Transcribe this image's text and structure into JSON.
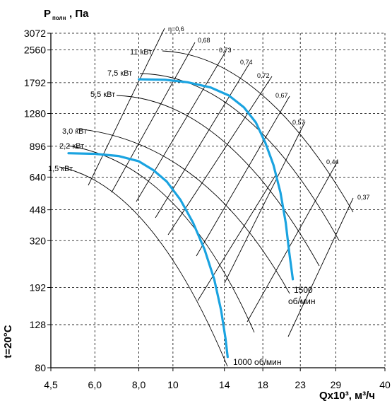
{
  "chart_data": {
    "type": "line",
    "ylabel_main": "P",
    "ylabel_sub": "полн",
    "ylabel_unit": ", Па",
    "xlabel": "Qx10³, м³/ч",
    "temperature_label": "t=20°C",
    "x_scale": "log",
    "y_scale": "log",
    "xlim": [
      4.5,
      40
    ],
    "ylim": [
      80,
      3072
    ],
    "x_ticks": [
      4.5,
      6.0,
      8.0,
      10,
      14,
      18,
      23,
      29,
      40
    ],
    "x_tick_labels": [
      "4,5",
      "6,0",
      "8,0",
      "10",
      "14",
      "18",
      "23",
      "29",
      "40"
    ],
    "y_ticks": [
      80,
      128,
      192,
      320,
      448,
      640,
      896,
      1280,
      1792,
      2560,
      3072
    ],
    "y_tick_labels": [
      "80",
      "128",
      "192",
      "320",
      "448",
      "640",
      "896",
      "1280",
      "1792",
      "2560",
      "3072"
    ],
    "grid": true,
    "series": [
      {
        "name": "1000 об/мин",
        "color": "#1aa3e0",
        "x": [
          5.05,
          6.0,
          7.0,
          8.0,
          8.8,
          9.6,
          10.5,
          11.4,
          12.3,
          13.1,
          13.7,
          14.1,
          14.3
        ],
        "y": [
          830,
          825,
          805,
          760,
          690,
          610,
          500,
          390,
          290,
          210,
          150,
          110,
          90
        ]
      },
      {
        "name": "1500 об/мин",
        "color": "#1aa3e0",
        "x": [
          8.0,
          9.5,
          11.0,
          12.8,
          14.4,
          15.9,
          17.2,
          18.3,
          19.3,
          20.2,
          20.9,
          21.4,
          21.9
        ],
        "y": [
          1860,
          1850,
          1800,
          1700,
          1560,
          1370,
          1160,
          930,
          730,
          540,
          390,
          280,
          210
        ]
      }
    ],
    "power_labels": [
      "11 кВт",
      "7,5 кВт",
      "5,5 кВт",
      "3,0 кВт",
      "2,2 кВт",
      "1,5 кВт"
    ],
    "efficiency_labels": [
      "η=0,6",
      "0,68",
      "0,73",
      "0,74",
      "0,72",
      "0,67",
      "0,57",
      "0,44",
      "0,37"
    ],
    "speed_labels": [
      "1500",
      "об/мин",
      "1000 об/мин"
    ]
  }
}
